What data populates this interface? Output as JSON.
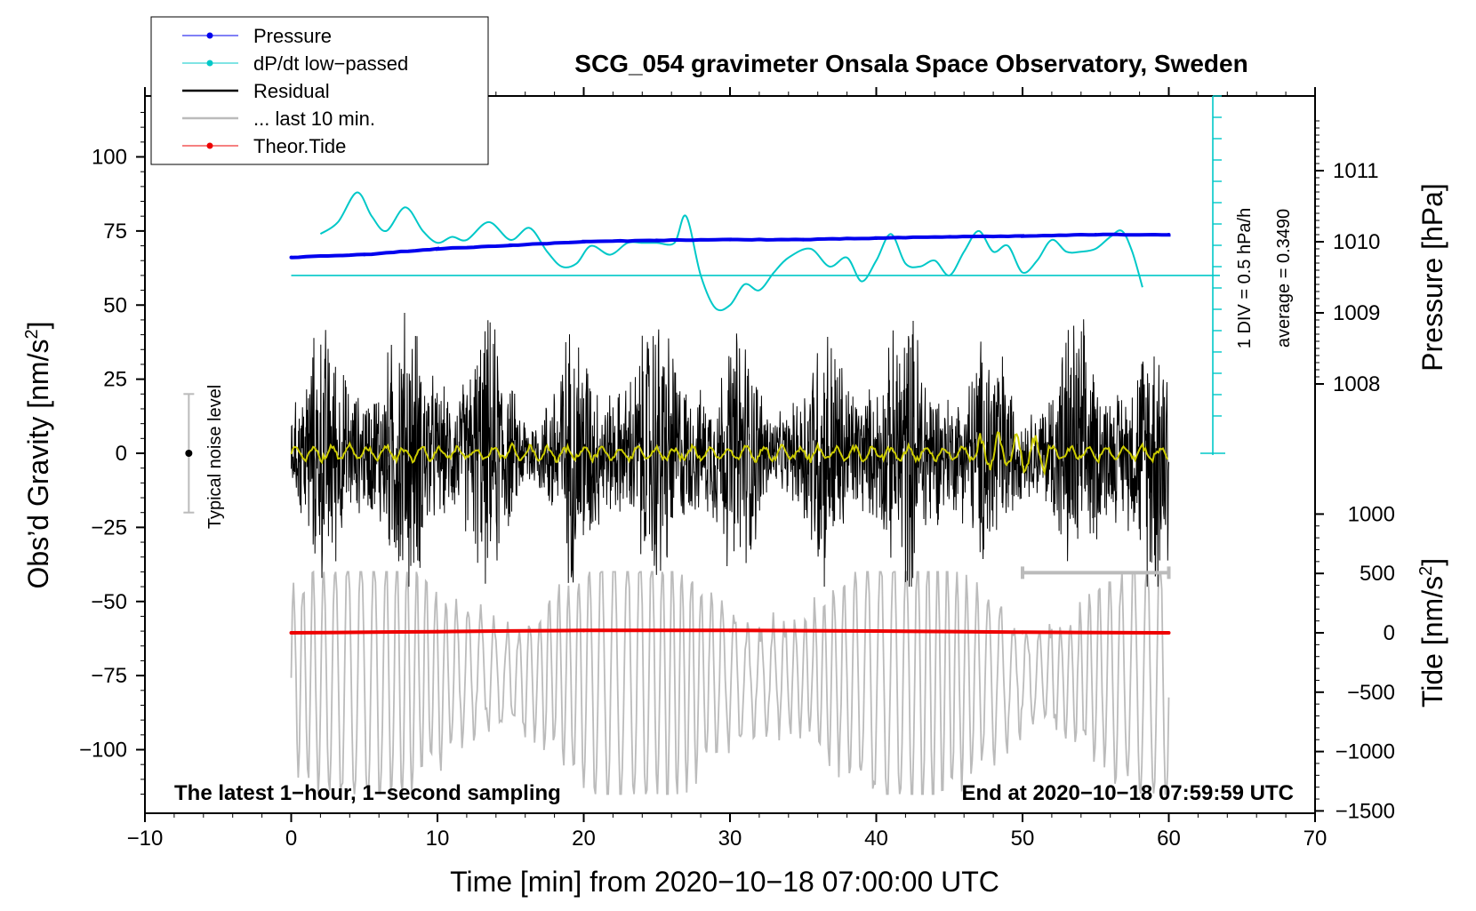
{
  "chart_data": {
    "type": "line",
    "title": "SCG_054 gravimeter Onsala Space Observatory, Sweden",
    "xlabel": "Time [min] from 2020−10−18 07:00:00 UTC",
    "ylabel_left_main": "Obs’d Gravity [nm/s",
    "ylabel_left_sup": "2",
    "ylabel_left_end": "]",
    "ylabel_right_top": "Pressure [hPa]",
    "ylabel_right_bottom_main": "Tide [nm/s",
    "ylabel_right_bottom_sup": "2",
    "ylabel_right_bottom_end": "]",
    "xlim": [
      -10,
      70
    ],
    "ylim_left": [
      -120,
      120
    ],
    "x_ticks": [
      "−10",
      "0",
      "10",
      "20",
      "30",
      "40",
      "50",
      "60",
      "70"
    ],
    "y_ticks_left": [
      "100",
      "75",
      "50",
      "25",
      "0",
      "−25",
      "−50",
      "−75",
      "−100"
    ],
    "y_ticks_pressure": [
      "1011",
      "1010",
      "1009",
      "1008"
    ],
    "y_ticks_tide": [
      "1000",
      "500",
      "0",
      "−500",
      "−1000",
      "−1500"
    ],
    "annotations": {
      "bottom_left": "The latest 1−hour, 1−second sampling",
      "bottom_right": "End at 2020−10−18 07:59:59 UTC",
      "noise_label": "Typical noise level",
      "div_label": "1 DIV = 0.5 hPa/h",
      "avg_label": "average = 0.3490"
    },
    "legend": [
      {
        "label": "Pressure",
        "color": "#0000ee",
        "marker": true
      },
      {
        "label": "dP/dt low−passed",
        "color": "#00c8c8",
        "marker": true
      },
      {
        "label": "Residual",
        "color": "#000000",
        "marker": false
      },
      {
        "label": "... last 10 min.",
        "color": "#bbbbbb",
        "marker": false
      },
      {
        "label": "Theor.Tide",
        "color": "#ee0000",
        "marker": true
      }
    ],
    "series": [
      {
        "name": "Pressure",
        "axis": "hPa",
        "color": "#0000ee",
        "x": [
          0,
          5,
          10,
          15,
          20,
          25,
          30,
          35,
          40,
          45,
          50,
          55,
          60
        ],
        "values": [
          1009.78,
          1009.82,
          1009.9,
          1009.95,
          1010.0,
          1010.02,
          1010.03,
          1010.03,
          1010.05,
          1010.07,
          1010.08,
          1010.1,
          1010.1
        ]
      },
      {
        "name": "dP/dt low-passed",
        "axis": "left",
        "color": "#00c8c8",
        "x": [
          2.0,
          3.2,
          4.5,
          5.5,
          6.5,
          7.8,
          9.0,
          10.0,
          11.0,
          12.0,
          13.5,
          15.0,
          16.3,
          17.5,
          18.5,
          19.5,
          20.5,
          21.8,
          23.0,
          24.0,
          25.0,
          26.2,
          27.0,
          28.0,
          29.0,
          30.0,
          31.0,
          32.0,
          33.0,
          34.0,
          35.5,
          36.8,
          38.0,
          39.0,
          40.0,
          41.0,
          42.0,
          43.0,
          44.0,
          45.0,
          46.0,
          47.0,
          48.0,
          49.0,
          50.0,
          51.0,
          52.0,
          53.0,
          54.0,
          55.0,
          56.0,
          56.8,
          57.5,
          58.2
        ],
        "values": [
          74,
          78,
          88,
          80,
          75,
          83,
          75,
          71,
          73,
          72,
          78,
          72,
          76,
          68,
          63,
          64,
          70,
          67,
          71,
          71,
          71,
          71,
          80,
          60,
          49,
          50,
          57,
          55,
          61,
          66,
          69,
          63,
          66,
          58,
          65,
          74,
          64,
          63,
          65,
          60,
          68,
          75,
          68,
          70,
          61,
          65,
          72,
          68,
          68,
          69,
          73,
          75,
          68,
          56
        ]
      },
      {
        "name": "Residual",
        "axis": "left",
        "color": "#000000",
        "x_range": [
          0,
          60
        ],
        "envelope": [
          -45,
          55
        ]
      },
      {
        "name": "... last 10 min.",
        "axis": "left",
        "color": "#bbbbbb",
        "x_range": [
          0,
          60
        ],
        "center": -75,
        "envelope": [
          -115,
          -40
        ]
      },
      {
        "name": "Theor.Tide",
        "axis": "tide",
        "color": "#ee0000",
        "x": [
          0,
          10,
          20,
          30,
          40,
          50,
          60
        ],
        "values": [
          0,
          10,
          20,
          20,
          15,
          5,
          0
        ]
      },
      {
        "name": "Residual filtered",
        "axis": "left",
        "color": "#cccc00",
        "x_range": [
          0,
          60
        ],
        "center": 0
      }
    ],
    "dpdt_zero_line": 60,
    "noise_bar": {
      "x": -7,
      "low": -20,
      "high": 20,
      "center": 0
    },
    "last10_bar": {
      "x_start": 50,
      "x_end": 60,
      "y": -40
    }
  }
}
